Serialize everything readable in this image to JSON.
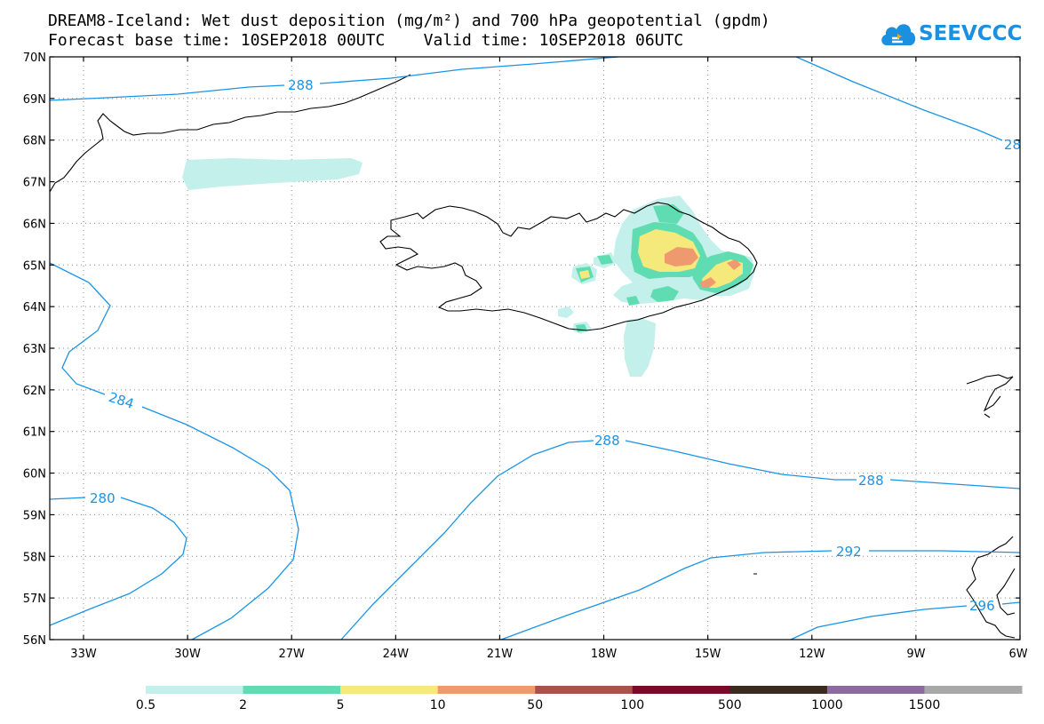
{
  "header": {
    "title_line1": "DREAM8-Iceland: Wet dust deposition (mg/m²) and 700 hPa geopotential (gpdm)",
    "title_line2": "Forecast base time: 10SEP2018 00UTC    Valid time: 10SEP2018 06UTC"
  },
  "logo": {
    "text": "SEEVCCC",
    "icon": "cloud-logo-icon",
    "color": "#1b8fe0"
  },
  "map": {
    "lat_labels": [
      "70N",
      "69N",
      "68N",
      "67N",
      "66N",
      "65N",
      "64N",
      "63N",
      "62N",
      "61N",
      "60N",
      "59N",
      "58N",
      "57N",
      "56N"
    ],
    "lon_labels": [
      "33W",
      "30W",
      "27W",
      "24W",
      "21W",
      "18W",
      "15W",
      "12W",
      "9W",
      "6W"
    ],
    "contour_color": "#1a94e6",
    "contour_labels": [
      "288",
      "28",
      "284",
      "280",
      "288",
      "288",
      "292",
      "296"
    ]
  },
  "colorbar": {
    "colors": [
      "#c3f0ea",
      "#5fdcb1",
      "#f6e97c",
      "#ee9a6e",
      "#a9524a",
      "#7a0a28",
      "#3b2a1e",
      "#8c6a9e",
      "#a8a8a8"
    ],
    "labels": [
      "0.5",
      "2",
      "5",
      "10",
      "50",
      "100",
      "500",
      "1000",
      "1500"
    ]
  }
}
